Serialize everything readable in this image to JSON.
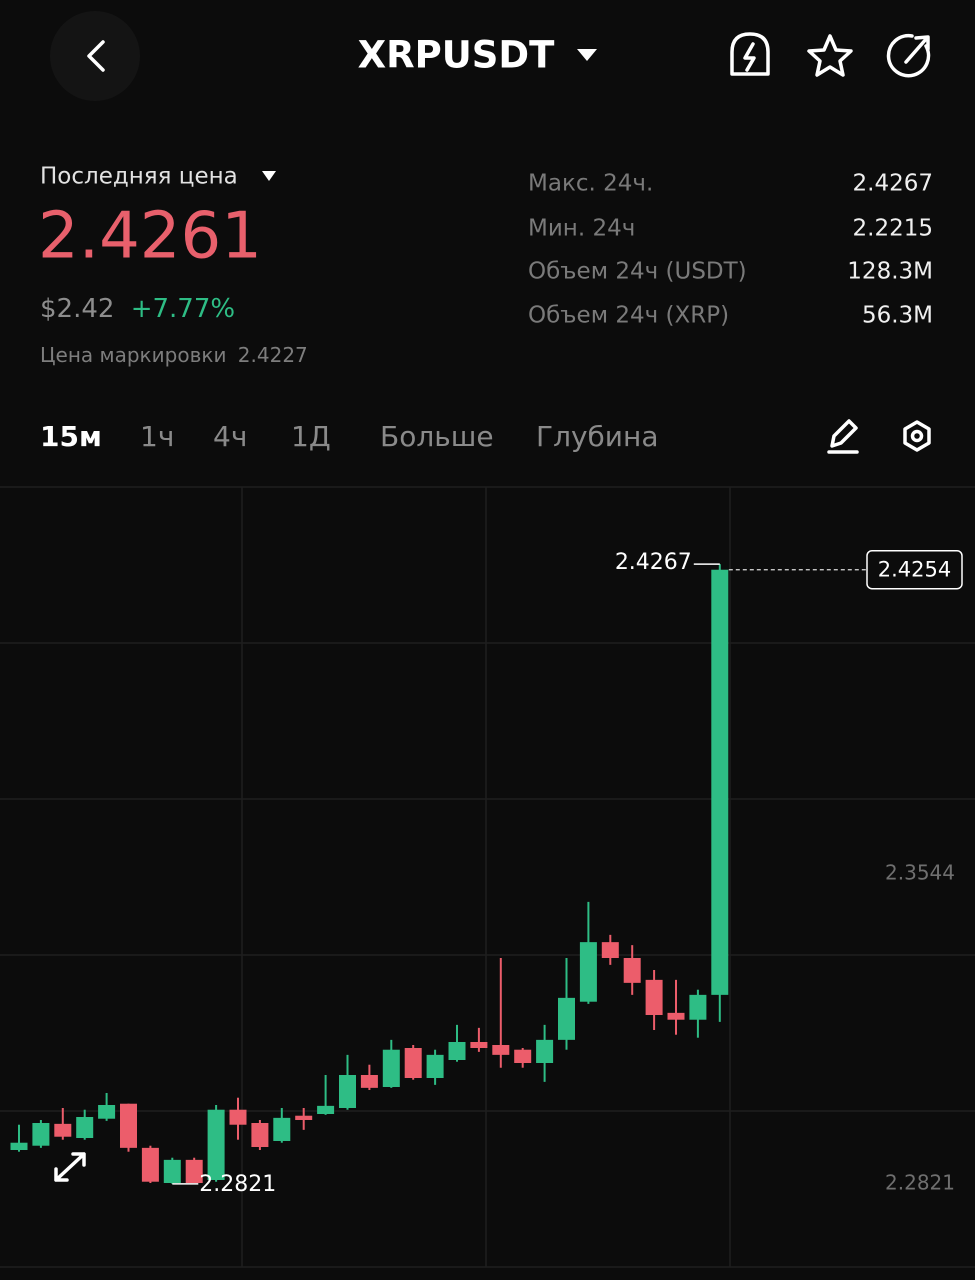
{
  "header": {
    "title": "XRPUSDT"
  },
  "ticker": {
    "last_price_label": "Последняя цена",
    "last_price": "2.4261",
    "usd_price": "$2.42",
    "change": "+7.77%",
    "mark_price_label": "Цена маркировки",
    "mark_price": "2.4227"
  },
  "stats": [
    {
      "label": "Макс. 24ч.",
      "value": "2.4267"
    },
    {
      "label": "Мин. 24ч",
      "value": "2.2215"
    },
    {
      "label": "Объем 24ч (USDT)",
      "value": "128.3M"
    },
    {
      "label": "Объем 24ч (XRP)",
      "value": "56.3M"
    }
  ],
  "tabs": [
    "15м",
    "1ч",
    "4ч",
    "1Д",
    "Больше",
    "Глубина"
  ],
  "chart_data": {
    "type": "candlestick",
    "up_color": "#2ebd85",
    "down_color": "#ec5d6b",
    "open": [
      2.29,
      2.291,
      2.2961,
      2.2928,
      2.2973,
      2.3008,
      2.2905,
      2.2823,
      2.2877,
      2.283,
      2.2994,
      2.2963,
      2.2921,
      2.298,
      2.2984,
      2.2998,
      2.3075,
      2.3047,
      2.3138,
      2.3068,
      2.311,
      2.3152,
      2.3145,
      2.3134,
      2.3103,
      2.3157,
      2.3246,
      2.3385,
      2.3348,
      2.3297,
      2.322,
      2.3204,
      2.3262
    ],
    "high": [
      2.2959,
      2.297,
      2.2998,
      2.2994,
      2.3033,
      2.3008,
      2.291,
      2.2882,
      2.2882,
      2.3005,
      2.3022,
      2.297,
      2.2998,
      2.2998,
      2.3075,
      2.3122,
      2.3099,
      2.3157,
      2.3145,
      2.3134,
      2.3192,
      2.3185,
      2.3348,
      2.3138,
      2.3192,
      2.3348,
      2.3479,
      2.3402,
      2.3378,
      2.332,
      2.3297,
      2.3274,
      2.4267
    ],
    "low": [
      2.2896,
      2.2905,
      2.2924,
      2.2924,
      2.2968,
      2.2896,
      2.2823,
      2.2821,
      2.2823,
      2.2826,
      2.2924,
      2.29,
      2.2917,
      2.2947,
      2.2982,
      2.2994,
      2.304,
      2.3045,
      2.3064,
      2.3052,
      2.3106,
      2.3129,
      2.3092,
      2.3092,
      2.3059,
      2.3134,
      2.3241,
      2.3332,
      2.3262,
      2.318,
      2.3169,
      2.3162,
      2.3199
    ],
    "close": [
      2.2917,
      2.2963,
      2.2931,
      2.2977,
      2.3005,
      2.2905,
      2.2826,
      2.2877,
      2.2823,
      2.2994,
      2.2959,
      2.2907,
      2.2975,
      2.297,
      2.3003,
      2.3075,
      2.3045,
      2.3134,
      2.3068,
      2.3122,
      2.3152,
      2.3138,
      2.3122,
      2.3103,
      2.3157,
      2.3255,
      2.3385,
      2.3348,
      2.329,
      2.3215,
      2.3204,
      2.3262,
      2.4254
    ],
    "ylim": [
      2.2627,
      2.4447
    ],
    "yticks": [
      2.3544,
      2.2821
    ]
  }
}
